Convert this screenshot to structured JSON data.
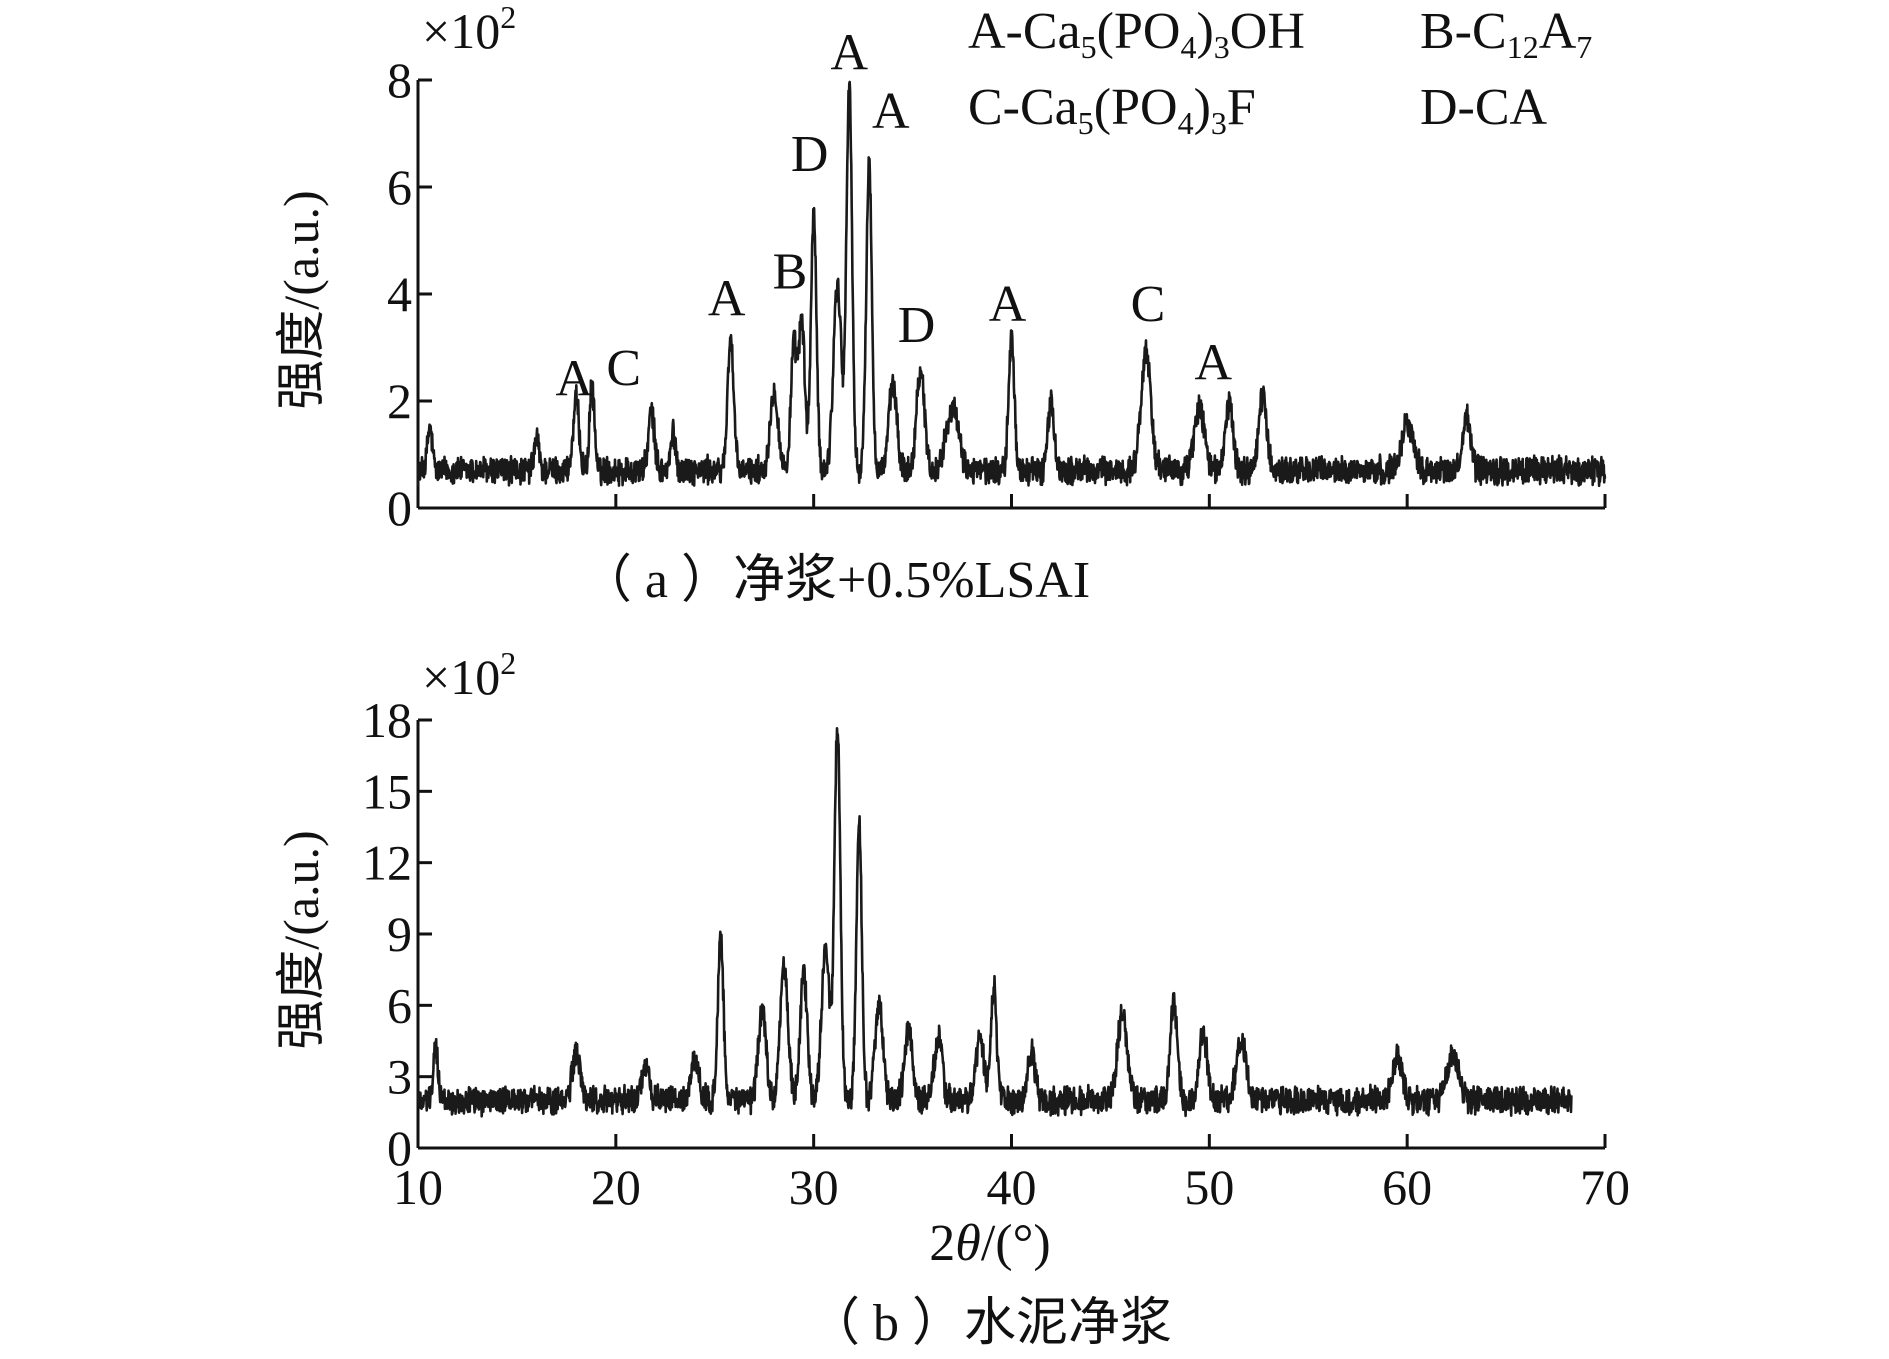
{
  "chart_data": [
    {
      "type": "line",
      "panel": "a",
      "caption": "（ a ）净浆+0.5%LSAI",
      "ylabel": "强度/(a.u.)",
      "y_multiplier": "×10",
      "y_multiplier_exp": "2",
      "xlim": [
        10,
        70
      ],
      "ylim": [
        0,
        8
      ],
      "yticks": [
        0,
        2,
        4,
        6,
        8
      ],
      "xticks": [
        10,
        20,
        30,
        40,
        50,
        60,
        70
      ],
      "show_x_tick_labels": false,
      "grid": false,
      "baseline": 0.7,
      "x_end": 70,
      "peaks": [
        {
          "x": 10.6,
          "y": 1.5,
          "w": 0.12
        },
        {
          "x": 16.0,
          "y": 1.3,
          "w": 0.12
        },
        {
          "x": 18.0,
          "y": 2.0,
          "w": 0.15
        },
        {
          "x": 18.8,
          "y": 2.3,
          "w": 0.12
        },
        {
          "x": 21.8,
          "y": 1.8,
          "w": 0.15
        },
        {
          "x": 22.9,
          "y": 1.4,
          "w": 0.12
        },
        {
          "x": 25.8,
          "y": 3.2,
          "w": 0.15
        },
        {
          "x": 28.0,
          "y": 2.2,
          "w": 0.2
        },
        {
          "x": 29.0,
          "y": 3.0,
          "w": 0.15
        },
        {
          "x": 29.4,
          "y": 3.5,
          "w": 0.15
        },
        {
          "x": 30.0,
          "y": 5.5,
          "w": 0.14
        },
        {
          "x": 31.2,
          "y": 4.2,
          "w": 0.2
        },
        {
          "x": 31.8,
          "y": 7.9,
          "w": 0.14
        },
        {
          "x": 32.8,
          "y": 6.5,
          "w": 0.14
        },
        {
          "x": 34.0,
          "y": 2.3,
          "w": 0.2
        },
        {
          "x": 35.4,
          "y": 2.6,
          "w": 0.2
        },
        {
          "x": 37.0,
          "y": 1.9,
          "w": 0.3
        },
        {
          "x": 40.0,
          "y": 3.2,
          "w": 0.14
        },
        {
          "x": 42.0,
          "y": 2.0,
          "w": 0.15
        },
        {
          "x": 46.8,
          "y": 2.9,
          "w": 0.25
        },
        {
          "x": 49.5,
          "y": 1.9,
          "w": 0.25
        },
        {
          "x": 51.0,
          "y": 1.9,
          "w": 0.2
        },
        {
          "x": 52.7,
          "y": 2.1,
          "w": 0.2
        },
        {
          "x": 60.0,
          "y": 1.6,
          "w": 0.3
        },
        {
          "x": 63.0,
          "y": 1.7,
          "w": 0.2
        }
      ],
      "annotations": [
        {
          "text": "A",
          "x": 17.9,
          "y": 2.1
        },
        {
          "text": "C",
          "x": 20.4,
          "y": 2.3
        },
        {
          "text": "A",
          "x": 25.6,
          "y": 3.6
        },
        {
          "text": "B",
          "x": 28.8,
          "y": 4.1
        },
        {
          "text": "D",
          "x": 29.8,
          "y": 6.3
        },
        {
          "text": "A",
          "x": 31.8,
          "y": 8.2
        },
        {
          "text": "A",
          "x": 33.9,
          "y": 7.1
        },
        {
          "text": "D",
          "x": 35.2,
          "y": 3.1
        },
        {
          "text": "A",
          "x": 39.8,
          "y": 3.5
        },
        {
          "text": "C",
          "x": 46.9,
          "y": 3.5
        },
        {
          "text": "A",
          "x": 50.2,
          "y": 2.4
        }
      ]
    },
    {
      "type": "line",
      "panel": "b",
      "caption": "（ b ）水泥净浆",
      "ylabel": "强度/(a.u.)",
      "xlabel_italic": "θ",
      "xlabel_prefix": "2",
      "xlabel_suffix": "/(°)",
      "y_multiplier": "×10",
      "y_multiplier_exp": "2",
      "xlim": [
        10,
        70
      ],
      "ylim": [
        0,
        18
      ],
      "yticks": [
        0,
        3,
        6,
        9,
        12,
        15,
        18
      ],
      "xticks": [
        10,
        20,
        30,
        40,
        50,
        60,
        70
      ],
      "show_x_tick_labels": true,
      "grid": false,
      "baseline": 2.0,
      "x_end": 68.3,
      "peaks": [
        {
          "x": 10.9,
          "y": 4.2,
          "w": 0.12
        },
        {
          "x": 18.0,
          "y": 4.0,
          "w": 0.2
        },
        {
          "x": 21.5,
          "y": 3.5,
          "w": 0.2
        },
        {
          "x": 24.0,
          "y": 3.7,
          "w": 0.2
        },
        {
          "x": 25.3,
          "y": 9.0,
          "w": 0.14
        },
        {
          "x": 27.4,
          "y": 5.8,
          "w": 0.2
        },
        {
          "x": 28.5,
          "y": 7.6,
          "w": 0.2
        },
        {
          "x": 29.5,
          "y": 7.3,
          "w": 0.18
        },
        {
          "x": 30.6,
          "y": 8.5,
          "w": 0.2
        },
        {
          "x": 31.2,
          "y": 17.5,
          "w": 0.15
        },
        {
          "x": 32.3,
          "y": 13.6,
          "w": 0.14
        },
        {
          "x": 33.3,
          "y": 6.0,
          "w": 0.2
        },
        {
          "x": 34.8,
          "y": 5.0,
          "w": 0.2
        },
        {
          "x": 36.3,
          "y": 4.6,
          "w": 0.2
        },
        {
          "x": 38.4,
          "y": 4.6,
          "w": 0.2
        },
        {
          "x": 39.1,
          "y": 6.9,
          "w": 0.14
        },
        {
          "x": 41.0,
          "y": 4.0,
          "w": 0.2
        },
        {
          "x": 45.6,
          "y": 5.5,
          "w": 0.25
        },
        {
          "x": 48.2,
          "y": 6.1,
          "w": 0.18
        },
        {
          "x": 49.7,
          "y": 4.8,
          "w": 0.2
        },
        {
          "x": 51.6,
          "y": 4.5,
          "w": 0.25
        },
        {
          "x": 59.5,
          "y": 3.8,
          "w": 0.25
        },
        {
          "x": 62.3,
          "y": 3.8,
          "w": 0.3
        }
      ]
    }
  ],
  "legend": [
    {
      "prefix": "A-Ca",
      "sub1": "5",
      "mid": "(PO",
      "sub2": "4",
      "mid2": ")",
      "sub3": "3",
      "suffix": "OH"
    },
    {
      "prefix": "B-C",
      "sub1": "12",
      "mid": "A",
      "sub2": "7"
    },
    {
      "prefix": "C-Ca",
      "sub1": "5",
      "mid": "(PO",
      "sub2": "4",
      "mid2": ")",
      "sub3": "3",
      "suffix": "F"
    },
    {
      "text": "D-CA"
    }
  ],
  "colors": {
    "line": "#1a1a1a",
    "axis": "#111111"
  }
}
